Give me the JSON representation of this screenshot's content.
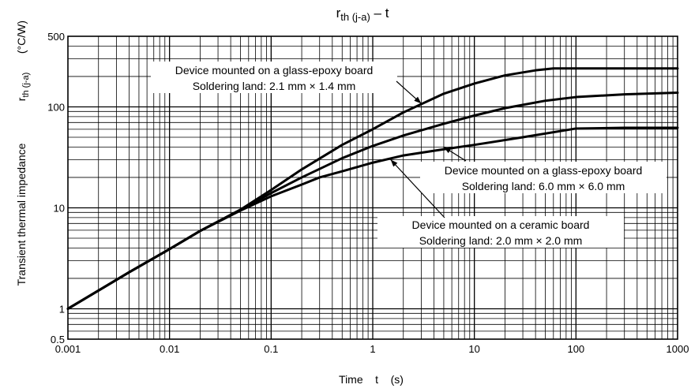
{
  "chart_data": {
    "type": "line",
    "title": "rth (j-a) – t",
    "title_main": "r",
    "title_sub": "th (j-a)",
    "title_tail": " – t",
    "xlabel": "Time    t    (s)",
    "ylabel": "Transient thermal impedance",
    "ylabel_symbol": "r",
    "ylabel_symbol_sub": "th (j-a)",
    "ylabel_unit": "(°C/W)",
    "x_scale": "log",
    "y_scale": "log",
    "xlim": [
      0.001,
      1000
    ],
    "ylim": [
      0.5,
      500
    ],
    "grid": true,
    "x_tick_labels": [
      {
        "value": 0.001,
        "label": "0.001"
      },
      {
        "value": 0.01,
        "label": "0.01"
      },
      {
        "value": 0.1,
        "label": "0.1"
      },
      {
        "value": 1,
        "label": "1"
      },
      {
        "value": 10,
        "label": "10"
      },
      {
        "value": 100,
        "label": "100"
      },
      {
        "value": 1000,
        "label": "1000"
      }
    ],
    "y_tick_labels": [
      {
        "value": 0.5,
        "label": "0.5"
      },
      {
        "value": 1,
        "label": "1"
      },
      {
        "value": 10,
        "label": "10"
      },
      {
        "value": 100,
        "label": "100"
      },
      {
        "value": 500,
        "label": "500"
      }
    ],
    "series": [
      {
        "x": [
          0.001,
          0.004,
          0.01,
          0.02,
          0.05,
          0.1,
          0.2,
          0.5,
          1,
          2,
          5,
          10,
          20,
          40,
          60,
          100,
          300,
          1000
        ],
        "y": [
          1,
          2.3,
          3.9,
          5.9,
          9.6,
          15,
          24,
          42,
          60,
          88,
          135,
          170,
          205,
          230,
          240,
          240,
          240,
          240
        ]
      },
      {
        "x": [
          0.001,
          0.004,
          0.01,
          0.02,
          0.05,
          0.1,
          0.2,
          0.5,
          1,
          2,
          5,
          10,
          20,
          50,
          100,
          300,
          1000
        ],
        "y": [
          1,
          2.3,
          3.9,
          5.9,
          9.5,
          14,
          20,
          31,
          41,
          52,
          68,
          82,
          97,
          115,
          125,
          133,
          138
        ]
      },
      {
        "x": [
          0.001,
          0.004,
          0.01,
          0.02,
          0.05,
          0.1,
          0.2,
          0.3,
          0.5,
          1,
          2,
          5,
          10,
          30,
          100,
          300,
          1000
        ],
        "y": [
          1,
          2.3,
          3.9,
          5.9,
          9.4,
          13,
          17,
          20,
          23,
          28,
          33,
          38,
          42,
          50,
          61,
          62,
          62
        ]
      }
    ],
    "annotations": [
      {
        "line1": "Device mounted on a glass-epoxy board",
        "line2": "Soldering land: 2.1 mm × 1.4 mm",
        "target": [
          3,
          108
        ]
      },
      {
        "line1": "Device mounted on a glass-epoxy board",
        "line2": "Soldering land: 6.0 mm × 6.0 mm",
        "target": [
          5,
          40
        ]
      },
      {
        "line1": "Device mounted on a ceramic board",
        "line2": "Soldering land: 2.0 mm × 2.0 mm",
        "target": [
          1.5,
          30
        ]
      }
    ]
  }
}
